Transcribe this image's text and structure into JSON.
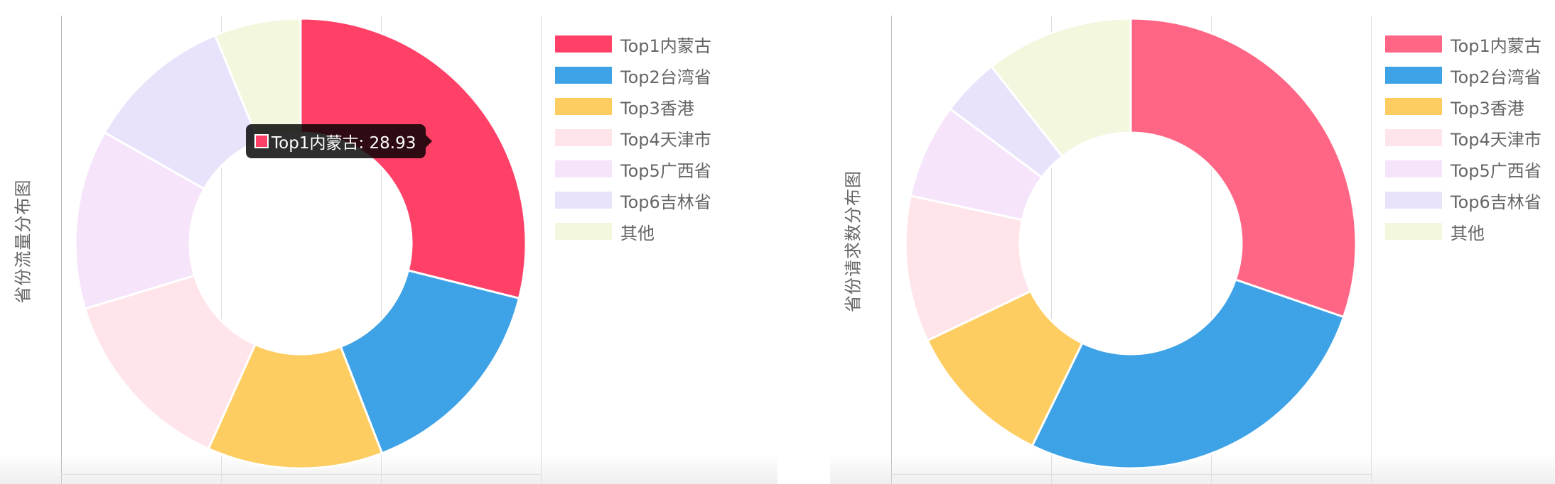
{
  "chart_data": [
    {
      "type": "pie",
      "ylabel": "省份流量分布图",
      "categories": [
        "Top1内蒙古",
        "Top2台湾省",
        "Top3香港",
        "Top4天津市",
        "Top5广西省",
        "Top6吉林省",
        "其他"
      ],
      "values": [
        28.93,
        15.2,
        12.6,
        13.6,
        12.9,
        10.6,
        6.2
      ],
      "colors": [
        "#ff4168",
        "#3ea2e6",
        "#fdcd62",
        "#ffe4ea",
        "#f6e4fb",
        "#e8e3fb",
        "#f2f7de"
      ],
      "hover_colors": [
        "#ff4168",
        "#3ea2e6",
        "#fdcd62",
        "#ffe4ea",
        "#f6e4fb",
        "#e8e3fb",
        "#f2f7de"
      ],
      "legend_position": "right",
      "tooltip": {
        "text": "Top1内蒙古: 28.93",
        "color": "#ff4168"
      }
    },
    {
      "type": "pie",
      "ylabel": "省份请求数分布图",
      "categories": [
        "Top1内蒙古",
        "Top2台湾省",
        "Top3香港",
        "Top4天津市",
        "Top5广西省",
        "Top6吉林省",
        "其他"
      ],
      "values": [
        30.3,
        26.9,
        10.7,
        10.5,
        6.8,
        4.2,
        10.6
      ],
      "colors": [
        "#ff6685",
        "#3ea2e6",
        "#fdcd62",
        "#ffe4ea",
        "#f6e4fb",
        "#e8e3fb",
        "#f2f7de"
      ],
      "legend_position": "right"
    }
  ]
}
